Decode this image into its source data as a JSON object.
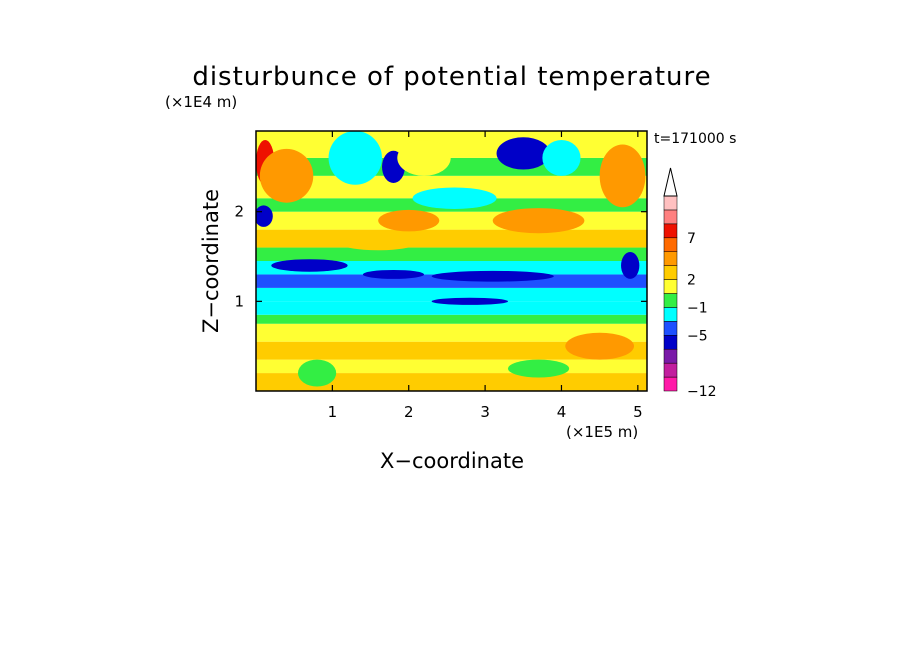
{
  "chart_data": {
    "type": "heatmap",
    "title": "disturbunce of potential temperature",
    "time_label": "t=171000 s",
    "xlabel": "X−coordinate",
    "ylabel": "Z−coordinate",
    "x_scale_label": "(×1E5 m)",
    "y_scale_label": "(×1E4 m)",
    "xlim": [
      0,
      5.12
    ],
    "ylim": [
      0,
      2.9
    ],
    "x_ticks": [
      "1",
      "2",
      "3",
      "4",
      "5"
    ],
    "y_ticks": [
      "1",
      "2"
    ],
    "colorbar": {
      "tick_labels": [
        "−12",
        "−5",
        "−1",
        "2",
        "7"
      ],
      "colors": [
        "#ff1aa8",
        "#c21e9e",
        "#7a1aa8",
        "#0000c8",
        "#1e50ff",
        "#00ffff",
        "#33ee44",
        "#ffff33",
        "#ffcc00",
        "#ff9900",
        "#ff6a00",
        "#ee1100",
        "#ff8080",
        "#ffc0c0"
      ],
      "extend": "max"
    },
    "bands": [
      {
        "z": [
          0.0,
          0.2
        ],
        "level": 8
      },
      {
        "z": [
          0.2,
          0.35
        ],
        "level": 7
      },
      {
        "z": [
          0.35,
          0.55
        ],
        "level": 8
      },
      {
        "z": [
          0.55,
          0.75
        ],
        "level": 7
      },
      {
        "z": [
          0.75,
          0.85
        ],
        "level": 6
      },
      {
        "z": [
          0.85,
          1.0
        ],
        "level": 5
      },
      {
        "z": [
          1.0,
          1.15
        ],
        "level": 5
      },
      {
        "z": [
          1.15,
          1.3
        ],
        "level": 4
      },
      {
        "z": [
          1.3,
          1.45
        ],
        "level": 5
      },
      {
        "z": [
          1.45,
          1.6
        ],
        "level": 6
      },
      {
        "z": [
          1.6,
          1.8
        ],
        "level": 8
      },
      {
        "z": [
          1.8,
          2.0
        ],
        "level": 7
      },
      {
        "z": [
          2.0,
          2.15
        ],
        "level": 6
      },
      {
        "z": [
          2.15,
          2.4
        ],
        "level": 7
      },
      {
        "z": [
          2.4,
          2.6
        ],
        "level": 6
      },
      {
        "z": [
          2.6,
          2.9
        ],
        "level": 7
      }
    ],
    "features": [
      {
        "x": 0.12,
        "z": 2.55,
        "rx": 0.12,
        "rz": 0.25,
        "level": 11
      },
      {
        "x": 0.4,
        "z": 2.4,
        "rx": 0.35,
        "rz": 0.3,
        "level": 9
      },
      {
        "x": 0.1,
        "z": 1.95,
        "rx": 0.12,
        "rz": 0.12,
        "level": 3
      },
      {
        "x": 1.3,
        "z": 2.6,
        "rx": 0.35,
        "rz": 0.3,
        "level": 5
      },
      {
        "x": 1.8,
        "z": 2.5,
        "rx": 0.15,
        "rz": 0.18,
        "level": 3
      },
      {
        "x": 2.6,
        "z": 2.15,
        "rx": 0.55,
        "rz": 0.12,
        "level": 5
      },
      {
        "x": 2.2,
        "z": 2.6,
        "rx": 0.35,
        "rz": 0.2,
        "level": 7
      },
      {
        "x": 3.5,
        "z": 2.65,
        "rx": 0.35,
        "rz": 0.18,
        "level": 3
      },
      {
        "x": 2.0,
        "z": 1.9,
        "rx": 0.4,
        "rz": 0.12,
        "level": 9
      },
      {
        "x": 3.7,
        "z": 1.9,
        "rx": 0.6,
        "rz": 0.14,
        "level": 9
      },
      {
        "x": 4.8,
        "z": 2.4,
        "rx": 0.3,
        "rz": 0.35,
        "level": 9
      },
      {
        "x": 4.0,
        "z": 2.6,
        "rx": 0.25,
        "rz": 0.2,
        "level": 5
      },
      {
        "x": 0.7,
        "z": 1.4,
        "rx": 0.5,
        "rz": 0.07,
        "level": 3
      },
      {
        "x": 1.8,
        "z": 1.3,
        "rx": 0.4,
        "rz": 0.05,
        "level": 3
      },
      {
        "x": 3.1,
        "z": 1.28,
        "rx": 0.8,
        "rz": 0.06,
        "level": 3
      },
      {
        "x": 2.8,
        "z": 1.0,
        "rx": 0.5,
        "rz": 0.04,
        "level": 3
      },
      {
        "x": 4.9,
        "z": 1.4,
        "rx": 0.12,
        "rz": 0.15,
        "level": 3
      },
      {
        "x": 1.6,
        "z": 1.65,
        "rx": 0.5,
        "rz": 0.08,
        "level": 8
      },
      {
        "x": 4.5,
        "z": 0.5,
        "rx": 0.45,
        "rz": 0.15,
        "level": 9
      },
      {
        "x": 0.8,
        "z": 0.2,
        "rx": 0.25,
        "rz": 0.15,
        "level": 6
      },
      {
        "x": 3.7,
        "z": 0.25,
        "rx": 0.4,
        "rz": 0.1,
        "level": 6
      }
    ]
  }
}
